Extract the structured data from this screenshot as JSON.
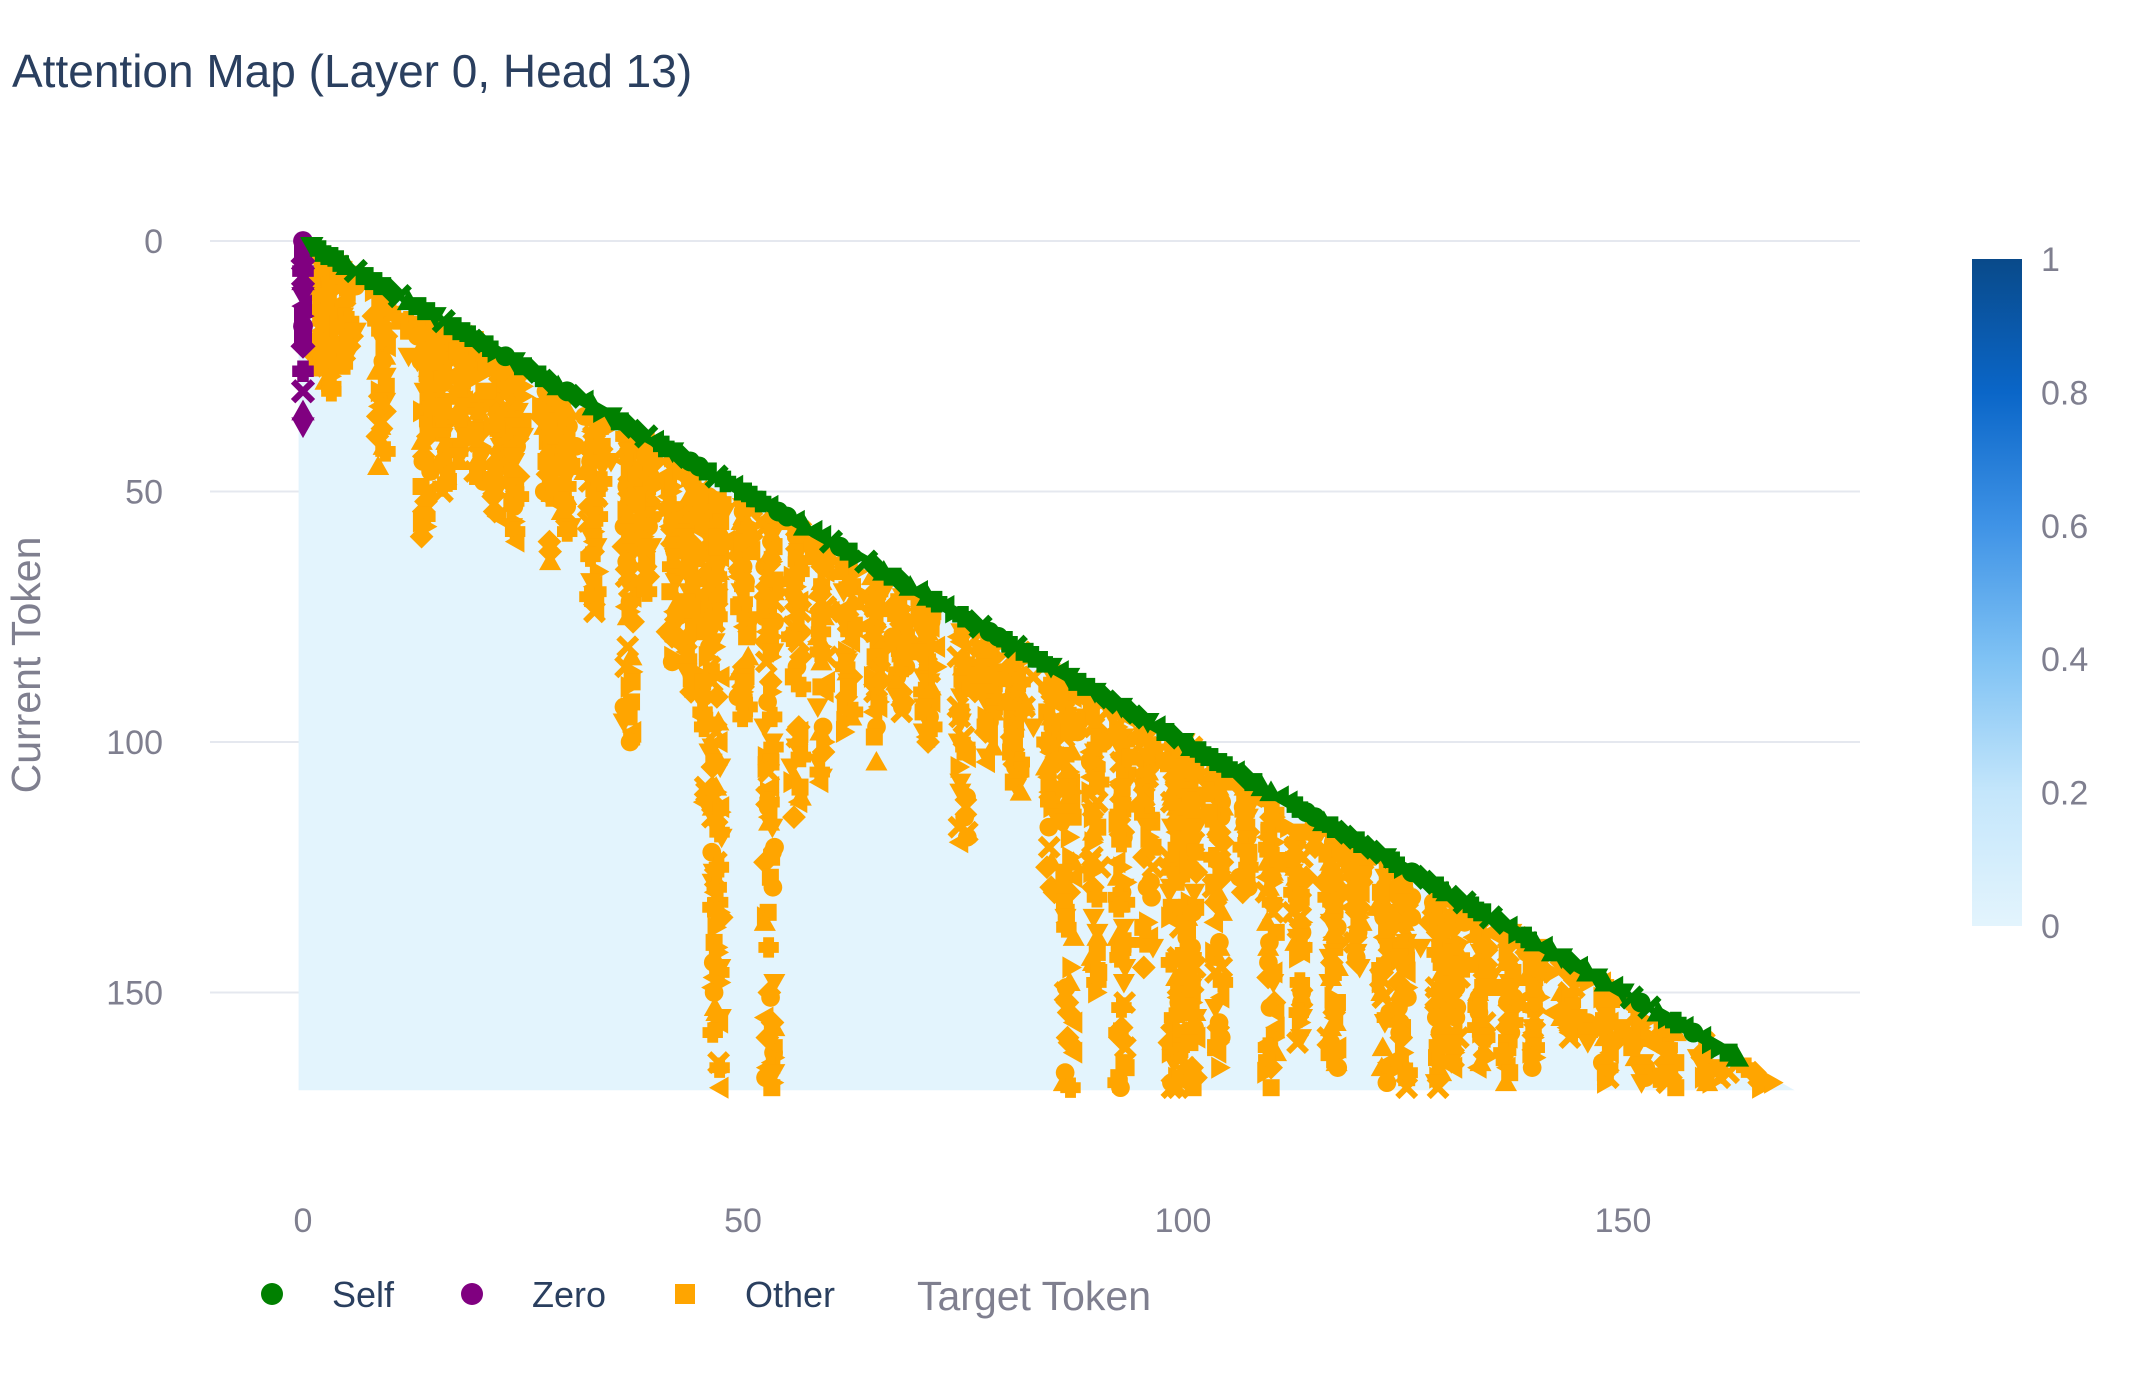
{
  "chart_data": {
    "type": "heatmap",
    "title": "Attention Map (Layer 0, Head 13)",
    "xlabel": "Target Token",
    "ylabel": "Current Token",
    "x_ticks": [
      "0",
      "50",
      "100",
      "150"
    ],
    "y_ticks": [
      "0",
      "50",
      "100",
      "150"
    ],
    "xlim": [
      -10,
      177
    ],
    "ylim": [
      187,
      0
    ],
    "n_tokens": 170,
    "mask": "causal lower-triangular",
    "heatmap_value_typical": 0.03,
    "colorbar": {
      "range": [
        0,
        1
      ],
      "ticks": [
        "0",
        "0.2",
        "0.4",
        "0.6",
        "0.8",
        "1"
      ],
      "colors": [
        "#e3f4fd",
        "#c4e6fb",
        "#7fc2f4",
        "#3f93e6",
        "#0a66c8",
        "#094a8a"
      ]
    },
    "grid": true,
    "legend": {
      "placement": "bottom-left",
      "entries": [
        {
          "name": "Self",
          "color": "#008000"
        },
        {
          "name": "Zero",
          "color": "#800080"
        },
        {
          "name": "Other",
          "color": "#ffa500"
        }
      ]
    },
    "series": [
      {
        "name": "Self",
        "color": "#008000",
        "description_points": "one marker at (i, i) for each row i = 0..169"
      },
      {
        "name": "Zero",
        "color": "#800080",
        "x": [
          0,
          0,
          0,
          0,
          0,
          0,
          0,
          0,
          0,
          0,
          0,
          0,
          0,
          0,
          0,
          0
        ],
        "y": [
          0,
          2,
          4,
          6,
          7,
          8,
          11,
          13,
          15,
          17,
          19,
          21,
          26,
          30,
          34,
          37
        ]
      },
      {
        "name": "Other",
        "color": "#ffa500",
        "dense_columns": [
          {
            "x": 2,
            "y_range": [
              3,
              25
            ]
          },
          {
            "x": 3,
            "y_range": [
              5,
              30
            ]
          },
          {
            "x": 5,
            "y_range": [
              8,
              25
            ]
          },
          {
            "x": 9,
            "y_range": [
              10,
              45
            ]
          },
          {
            "x": 14,
            "y_range": [
              15,
              60
            ]
          },
          {
            "x": 16,
            "y_range": [
              18,
              50
            ]
          },
          {
            "x": 18,
            "y_range": [
              19,
              45
            ]
          },
          {
            "x": 20,
            "y_range": [
              20,
              50
            ]
          },
          {
            "x": 22,
            "y_range": [
              23,
              55
            ]
          },
          {
            "x": 24,
            "y_range": [
              25,
              60
            ]
          },
          {
            "x": 28,
            "y_range": [
              30,
              65
            ]
          },
          {
            "x": 30,
            "y_range": [
              32,
              60
            ]
          },
          {
            "x": 33,
            "y_range": [
              35,
              75
            ]
          },
          {
            "x": 37,
            "y_range": [
              38,
              100
            ]
          },
          {
            "x": 39,
            "y_range": [
              40,
              70
            ]
          },
          {
            "x": 42,
            "y_range": [
              44,
              85
            ]
          },
          {
            "x": 44,
            "y_range": [
              48,
              90
            ]
          },
          {
            "x": 46,
            "y_range": [
              50,
              115
            ]
          },
          {
            "x": 47,
            "y_range": [
              52,
              170
            ]
          },
          {
            "x": 50,
            "y_range": [
              55,
              100
            ]
          },
          {
            "x": 53,
            "y_range": [
              56,
              170
            ]
          },
          {
            "x": 56,
            "y_range": [
              58,
              115
            ]
          },
          {
            "x": 59,
            "y_range": [
              60,
              110
            ]
          },
          {
            "x": 62,
            "y_range": [
              64,
              100
            ]
          },
          {
            "x": 65,
            "y_range": [
              66,
              105
            ]
          },
          {
            "x": 68,
            "y_range": [
              70,
              95
            ]
          },
          {
            "x": 71,
            "y_range": [
              72,
              100
            ]
          },
          {
            "x": 75,
            "y_range": [
              78,
              120
            ]
          },
          {
            "x": 78,
            "y_range": [
              80,
              105
            ]
          },
          {
            "x": 81,
            "y_range": [
              82,
              110
            ]
          },
          {
            "x": 85,
            "y_range": [
              86,
              130
            ]
          },
          {
            "x": 87,
            "y_range": [
              88,
              170
            ]
          },
          {
            "x": 90,
            "y_range": [
              90,
              150
            ]
          },
          {
            "x": 93,
            "y_range": [
              94,
              170
            ]
          },
          {
            "x": 96,
            "y_range": [
              97,
              145
            ]
          },
          {
            "x": 99,
            "y_range": [
              100,
              170
            ]
          },
          {
            "x": 100,
            "y_range": [
              100,
              170
            ]
          },
          {
            "x": 101,
            "y_range": [
              101,
              170
            ]
          },
          {
            "x": 104,
            "y_range": [
              105,
              165
            ]
          },
          {
            "x": 107,
            "y_range": [
              108,
              130
            ]
          },
          {
            "x": 110,
            "y_range": [
              111,
              170
            ]
          },
          {
            "x": 113,
            "y_range": [
              118,
              160
            ]
          },
          {
            "x": 117,
            "y_range": [
              120,
              165
            ]
          },
          {
            "x": 120,
            "y_range": [
              122,
              145
            ]
          },
          {
            "x": 123,
            "y_range": [
              124,
              170
            ]
          },
          {
            "x": 125,
            "y_range": [
              126,
              170
            ]
          },
          {
            "x": 129,
            "y_range": [
              130,
              170
            ]
          },
          {
            "x": 131,
            "y_range": [
              132,
              165
            ]
          },
          {
            "x": 134,
            "y_range": [
              136,
              170
            ]
          },
          {
            "x": 137,
            "y_range": [
              138,
              168
            ]
          },
          {
            "x": 140,
            "y_range": [
              141,
              165
            ]
          },
          {
            "x": 144,
            "y_range": [
              145,
              160
            ]
          },
          {
            "x": 148,
            "y_range": [
              148,
              168
            ]
          },
          {
            "x": 152,
            "y_range": [
              152,
              168
            ]
          },
          {
            "x": 155,
            "y_range": [
              156,
              168
            ]
          },
          {
            "x": 159,
            "y_range": [
              160,
              168
            ]
          },
          {
            "x": 166,
            "y_range": [
              167,
              169
            ]
          }
        ]
      }
    ]
  }
}
